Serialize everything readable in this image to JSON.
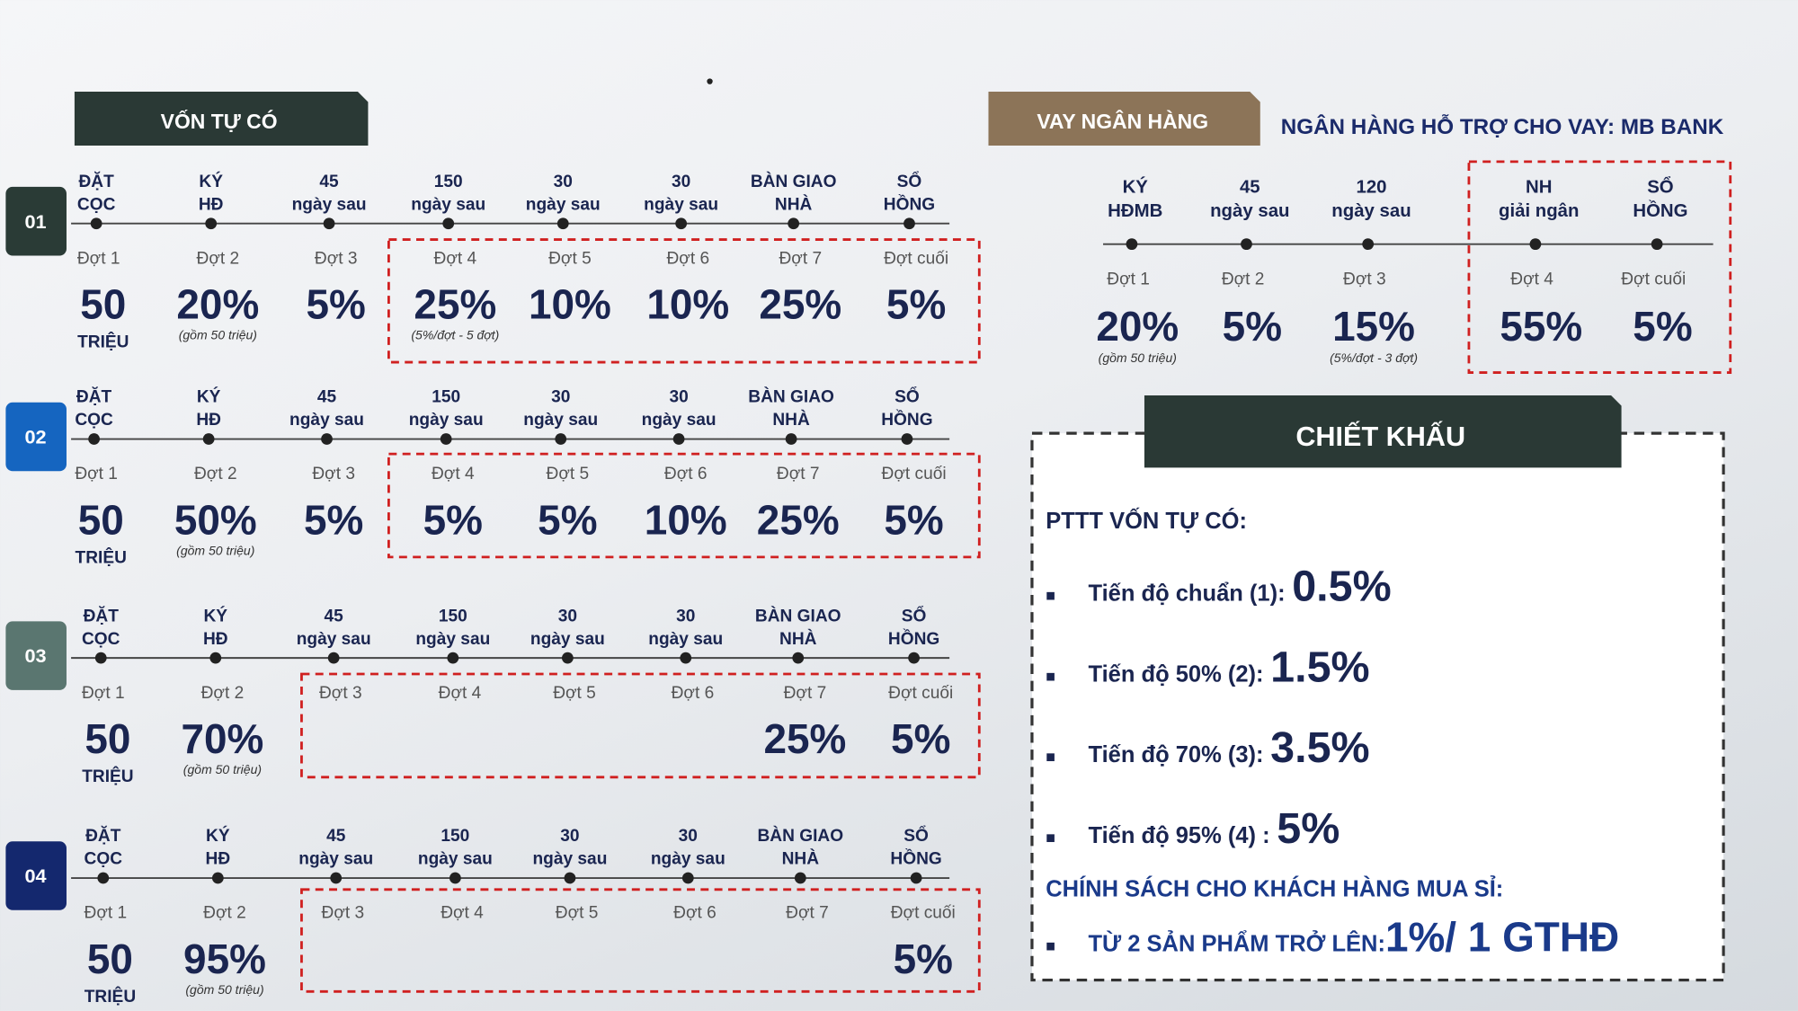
{
  "self_funded": {
    "title": "VỐN TỰ CÓ",
    "plans": [
      {
        "number": "01",
        "milestones": [
          [
            "ĐẶT",
            "CỌC"
          ],
          [
            "KÝ",
            "HĐ"
          ],
          [
            "45",
            "ngày sau"
          ],
          [
            "150",
            "ngày sau"
          ],
          [
            "30",
            "ngày sau"
          ],
          [
            "30",
            "ngày sau"
          ],
          [
            "BÀN GIAO",
            "NHÀ"
          ],
          [
            "SỔ",
            "HỒNG"
          ]
        ],
        "phases": [
          {
            "label": "Đợt 1",
            "value": "50",
            "unit": "TRIỆU"
          },
          {
            "label": "Đợt 2",
            "value": "20%",
            "note": "(gồm 50 triệu)"
          },
          {
            "label": "Đợt 3",
            "value": "5%"
          },
          {
            "label": "Đợt 4",
            "value": "25%",
            "note": "(5%/đợt - 5 đợt)"
          },
          {
            "label": "Đợt 5",
            "value": "10%"
          },
          {
            "label": "Đợt 6",
            "value": "10%"
          },
          {
            "label": "Đợt 7",
            "value": "25%"
          },
          {
            "label": "Đợt cuối",
            "value": "5%"
          }
        ]
      },
      {
        "number": "02",
        "milestones": [
          [
            "ĐẶT",
            "CỌC"
          ],
          [
            "KÝ",
            "HĐ"
          ],
          [
            "45",
            "ngày sau"
          ],
          [
            "150",
            "ngày sau"
          ],
          [
            "30",
            "ngày sau"
          ],
          [
            "30",
            "ngày sau"
          ],
          [
            "BÀN GIAO",
            "NHÀ"
          ],
          [
            "SỔ",
            "HỒNG"
          ]
        ],
        "phases": [
          {
            "label": "Đợt 1",
            "value": "50",
            "unit": "TRIỆU"
          },
          {
            "label": "Đợt 2",
            "value": "50%",
            "note": "(gồm 50 triệu)"
          },
          {
            "label": "Đợt 3",
            "value": "5%"
          },
          {
            "label": "Đợt 4",
            "value": "5%"
          },
          {
            "label": "Đợt 5",
            "value": "5%"
          },
          {
            "label": "Đợt 6",
            "value": "10%"
          },
          {
            "label": "Đợt 7",
            "value": "25%"
          },
          {
            "label": "Đợt cuối",
            "value": "5%"
          }
        ]
      },
      {
        "number": "03",
        "milestones": [
          [
            "ĐẶT",
            "CỌC"
          ],
          [
            "KÝ",
            "HĐ"
          ],
          [
            "45",
            "ngày sau"
          ],
          [
            "150",
            "ngày sau"
          ],
          [
            "30",
            "ngày sau"
          ],
          [
            "30",
            "ngày sau"
          ],
          [
            "BÀN GIAO",
            "NHÀ"
          ],
          [
            "SỔ",
            "HỒNG"
          ]
        ],
        "phases": [
          {
            "label": "Đợt 1",
            "value": "50",
            "unit": "TRIỆU"
          },
          {
            "label": "Đợt 2",
            "value": "70%",
            "note": "(gồm 50 triệu)"
          },
          {
            "label": "Đợt 3"
          },
          {
            "label": "Đợt 4"
          },
          {
            "label": "Đợt 5"
          },
          {
            "label": "Đợt 6"
          },
          {
            "label": "Đợt 7",
            "value": "25%"
          },
          {
            "label": "Đợt cuối",
            "value": "5%"
          }
        ]
      },
      {
        "number": "04",
        "milestones": [
          [
            "ĐẶT",
            "CỌC"
          ],
          [
            "KÝ",
            "HĐ"
          ],
          [
            "45",
            "ngày sau"
          ],
          [
            "150",
            "ngày sau"
          ],
          [
            "30",
            "ngày sau"
          ],
          [
            "30",
            "ngày sau"
          ],
          [
            "BÀN GIAO",
            "NHÀ"
          ],
          [
            "SỔ",
            "HỒNG"
          ]
        ],
        "phases": [
          {
            "label": "Đợt 1",
            "value": "50",
            "unit": "TRIỆU"
          },
          {
            "label": "Đợt 2",
            "value": "95%",
            "note": "(gồm 50 triệu)"
          },
          {
            "label": "Đợt 3"
          },
          {
            "label": "Đợt 4"
          },
          {
            "label": "Đợt 5"
          },
          {
            "label": "Đợt 6"
          },
          {
            "label": "Đợt 7"
          },
          {
            "label": "Đợt cuối",
            "value": "5%"
          }
        ]
      }
    ]
  },
  "bank": {
    "title": "VAY NGÂN HÀNG",
    "heading": "NGÂN HÀNG HỖ TRỢ CHO VAY: MB BANK",
    "milestones": [
      [
        "KÝ",
        "HĐMB"
      ],
      [
        "45",
        "ngày sau"
      ],
      [
        "120",
        "ngày sau"
      ],
      [
        "NH",
        "giải ngân"
      ],
      [
        "SỔ",
        "HỒNG"
      ]
    ],
    "phases": [
      {
        "label": "Đợt 1",
        "value": "20%",
        "note": "(gồm 50 triệu)"
      },
      {
        "label": "Đợt 2",
        "value": "5%"
      },
      {
        "label": "Đợt 3",
        "value": "15%",
        "note": "(5%/đợt - 3 đợt)"
      },
      {
        "label": "Đợt 4",
        "value": "55%"
      },
      {
        "label": "Đợt cuối",
        "value": "5%"
      }
    ]
  },
  "discount": {
    "title": "CHIẾT KHẤU",
    "section": "PTTT VỐN TỰ CÓ:",
    "items": [
      {
        "label": "Tiến độ chuẩn (1):",
        "value": "0.5%"
      },
      {
        "label": "Tiến độ 50% (2):",
        "value": "1.5%"
      },
      {
        "label": "Tiến độ 70% (3):",
        "value": "3.5%"
      },
      {
        "label": "Tiến độ 95% (4) :",
        "value": "5%"
      }
    ],
    "wholesale": {
      "heading": "CHÍNH SÁCH CHO KHÁCH HÀNG MUA SỈ:",
      "label": "TỪ 2 SẢN PHẨM TRỞ LÊN:",
      "value": "1%/ 1 GTHĐ"
    }
  }
}
